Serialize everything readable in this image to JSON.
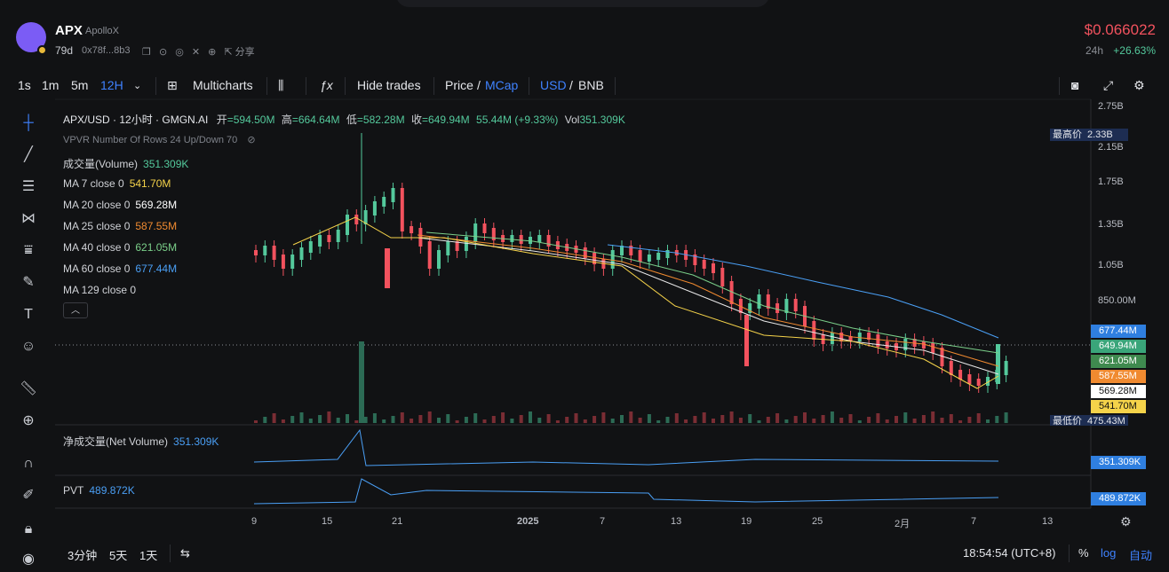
{
  "token": {
    "symbol": "APX",
    "name": "ApolloX",
    "age": "79d",
    "address": "0x78f...8b3",
    "share_label": "分享",
    "price": "$0.066022",
    "change_period": "24h",
    "change": "+26.63%"
  },
  "toolbar": {
    "intervals": [
      "1s",
      "1m",
      "5m",
      "12H"
    ],
    "active_interval": "12H",
    "multicharts": "Multicharts",
    "hide_trades": "Hide trades",
    "price_label": "Price",
    "slash": "/",
    "mcap_label": "MCap",
    "usd_label": "USD",
    "bnb_label": "BNB"
  },
  "chart": {
    "title": "APX/USD · 12小时 · GMGN.AI",
    "open_label": "开",
    "open": "=594.50M",
    "high_label": "高",
    "high": "=664.64M",
    "low_label": "低",
    "low": "=582.28M",
    "close_label": "收",
    "close": "=649.94M",
    "change": "55.44M (+9.33%)",
    "vol_label": "Vol",
    "vol": "351.309K",
    "vpvr": "VPVR Number Of Rows 24 Up/Down 70",
    "legend": [
      {
        "label": "成交量(Volume)",
        "value": "351.309K",
        "color": "#54c99c"
      },
      {
        "label": "MA 7 close 0",
        "value": "541.70M",
        "color": "#f5d34a"
      },
      {
        "label": "MA 20 close 0",
        "value": "569.28M",
        "color": "#ffffff"
      },
      {
        "label": "MA 25 close 0",
        "value": "587.55M",
        "color": "#f08a30"
      },
      {
        "label": "MA 40 close 0",
        "value": "621.05M",
        "color": "#7bd08a"
      },
      {
        "label": "MA 60 close 0",
        "value": "677.44M",
        "color": "#4a9ff5"
      },
      {
        "label": "MA 129 close 0",
        "value": "",
        "color": "#d0d2d7"
      }
    ],
    "y_ticks": [
      "2.75B",
      "2.15B",
      "1.75B",
      "1.35B",
      "1.05B",
      "850.00M"
    ],
    "ath_label": "最高价",
    "ath_value": "2.33B",
    "atl_label": "最低价",
    "atl_value": "475.43M",
    "price_tags": [
      {
        "value": "677.44M",
        "color": "#2f7fe0",
        "text_color": "#ffffff"
      },
      {
        "value": "649.94M",
        "color": "#3aa57a",
        "text_color": "#ffffff"
      },
      {
        "value": "621.05M",
        "color": "#3f8a4f",
        "text_color": "#ffffff"
      },
      {
        "value": "587.55M",
        "color": "#f08a30",
        "text_color": "#ffffff"
      },
      {
        "value": "569.28M",
        "color": "#ffffff",
        "text_color": "#111111"
      },
      {
        "value": "541.70M",
        "color": "#f5d34a",
        "text_color": "#111111"
      }
    ],
    "x_ticks": [
      "9",
      "15",
      "21",
      "2025",
      "7",
      "13",
      "19",
      "25",
      "2月",
      "7",
      "13"
    ],
    "net_volume_label": "净成交量(Net Volume)",
    "net_volume_value": "351.309K",
    "pvt_label": "PVT",
    "pvt_value": "489.872K"
  },
  "bottombar": {
    "ranges": [
      "3分钟",
      "5天",
      "1天"
    ],
    "time": "18:54:54 (UTC+8)",
    "percent": "%",
    "log": "log",
    "auto": "自动"
  }
}
